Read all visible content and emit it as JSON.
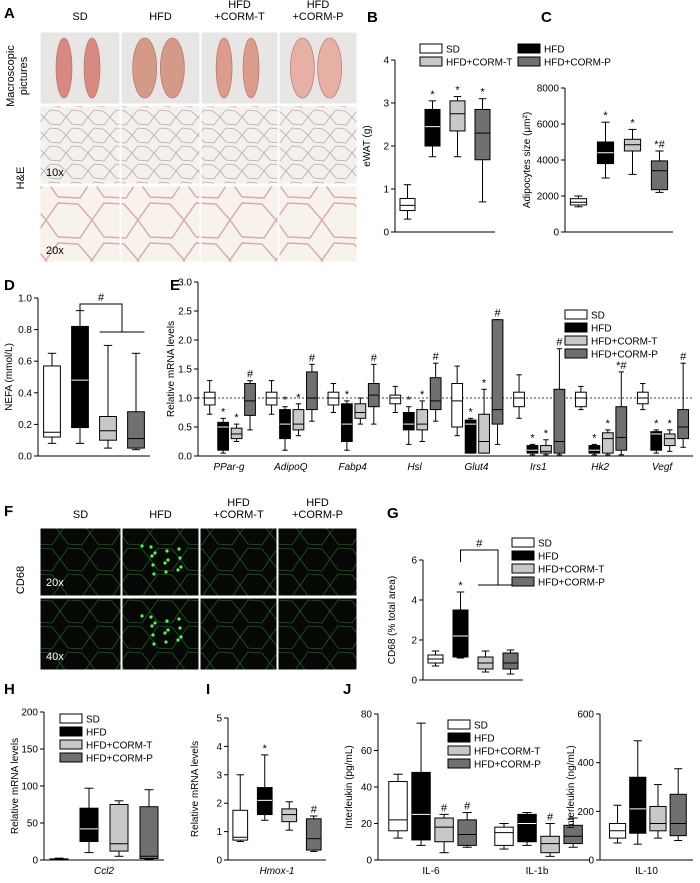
{
  "colors": {
    "SD": "#ffffff",
    "HFD": "#000000",
    "HFD+CORM-T": "#c8c8c8",
    "HFD+CORM-P": "#707070"
  },
  "panelA": {
    "letter": "A",
    "headers": [
      "SD",
      "HFD",
      "HFD\n+CORM-T",
      "HFD\n+CORM-P"
    ],
    "row_labels": [
      "Macroscopic\npictures",
      "H&E"
    ],
    "magnifications": [
      "10x",
      "20x"
    ]
  },
  "panelF": {
    "letter": "F",
    "headers": [
      "SD",
      "HFD",
      "HFD\n+CORM-T",
      "HFD\n+CORM-P"
    ],
    "row_label": "CD68",
    "magnifications": [
      "20x",
      "40x"
    ]
  },
  "chart_data": [
    {
      "id": "B",
      "type": "box",
      "letter": "B",
      "ylabel": "eWAT (g)",
      "ylim": [
        0,
        4
      ],
      "yticks": [
        0,
        1,
        2,
        3,
        4
      ],
      "legend": [
        "SD",
        "HFD",
        "HFD+CORM-T",
        "HFD+CORM-P"
      ],
      "groups": [
        "SD",
        "HFD",
        "HFD+CORM-T",
        "HFD+CORM-P"
      ],
      "boxes": [
        [
          0.3,
          0.5,
          0.62,
          0.78,
          1.1
        ],
        [
          1.75,
          2.0,
          2.45,
          2.85,
          3.05
        ],
        [
          1.75,
          2.35,
          2.75,
          3.05,
          3.15
        ],
        [
          0.7,
          1.68,
          2.3,
          2.85,
          3.1
        ]
      ],
      "marks": [
        "",
        "*",
        "*",
        "*"
      ]
    },
    {
      "id": "C",
      "type": "box",
      "letter": "C",
      "ylabel": "Adipocytes size (μm²)",
      "ylim": [
        0,
        8000
      ],
      "yticks": [
        0,
        2000,
        4000,
        6000,
        8000
      ],
      "groups": [
        "SD",
        "HFD",
        "HFD+CORM-T",
        "HFD+CORM-P"
      ],
      "boxes": [
        [
          1400,
          1500,
          1650,
          1850,
          2000
        ],
        [
          3000,
          3800,
          4400,
          5000,
          6100
        ],
        [
          3200,
          4500,
          4850,
          5150,
          5700
        ],
        [
          2200,
          2350,
          3400,
          3950,
          4500
        ]
      ],
      "marks": [
        "",
        "*",
        "*",
        "*#"
      ]
    },
    {
      "id": "D",
      "type": "box",
      "letter": "D",
      "ylabel": "NEFA (mmol/L)",
      "ylim": [
        0,
        1.0
      ],
      "yticks": [
        0.0,
        0.2,
        0.4,
        0.6,
        0.8,
        1.0
      ],
      "groups": [
        "SD",
        "HFD",
        "HFD+CORM-T",
        "HFD+CORM-P"
      ],
      "boxes": [
        [
          0.08,
          0.12,
          0.15,
          0.57,
          0.65
        ],
        [
          0.08,
          0.18,
          0.48,
          0.82,
          0.92
        ],
        [
          0.05,
          0.1,
          0.16,
          0.25,
          0.7
        ],
        [
          0.04,
          0.05,
          0.11,
          0.28,
          0.65
        ]
      ],
      "marks": [
        "",
        "",
        "",
        ""
      ],
      "bracket": "#"
    },
    {
      "id": "E",
      "type": "box",
      "letter": "E",
      "ylabel": "Relative mRNA levels",
      "ylim": [
        0,
        3.0
      ],
      "yticks": [
        0.0,
        0.5,
        1.0,
        1.5,
        2.0,
        2.5,
        3.0
      ],
      "refline": 1.0,
      "legend": [
        "SD",
        "HFD",
        "HFD+CORM-T",
        "HFD+CORM-P"
      ],
      "categories": [
        "PPar-g",
        "AdipoQ",
        "Fabp4",
        "Hsl",
        "Glut4",
        "Irs1",
        "Hk2",
        "Vegf"
      ],
      "boxes": [
        [
          [
            0.72,
            0.88,
            1.0,
            1.1,
            1.3
          ],
          [
            0.05,
            0.1,
            0.5,
            0.58,
            0.65
          ],
          [
            0.25,
            0.3,
            0.38,
            0.48,
            0.55
          ],
          [
            0.45,
            0.7,
            0.95,
            1.25,
            1.3
          ]
        ],
        [
          [
            0.72,
            0.88,
            1.0,
            1.1,
            1.3
          ],
          [
            0.1,
            0.3,
            0.55,
            0.8,
            0.85
          ],
          [
            0.35,
            0.45,
            0.55,
            0.8,
            0.9
          ],
          [
            0.6,
            0.8,
            1.0,
            1.45,
            1.58
          ]
        ],
        [
          [
            0.75,
            0.88,
            1.0,
            1.1,
            1.25
          ],
          [
            0.1,
            0.25,
            0.55,
            0.9,
            0.95
          ],
          [
            0.55,
            0.65,
            0.75,
            0.9,
            1.0
          ],
          [
            0.55,
            0.85,
            1.05,
            1.25,
            1.58
          ]
        ],
        [
          [
            0.75,
            0.9,
            1.0,
            1.05,
            1.2
          ],
          [
            0.2,
            0.45,
            0.55,
            0.75,
            0.85
          ],
          [
            0.25,
            0.45,
            0.55,
            0.8,
            0.95
          ],
          [
            0.6,
            0.8,
            0.95,
            1.35,
            1.6
          ]
        ],
        [
          [
            0.35,
            0.5,
            0.95,
            1.25,
            1.55
          ],
          [
            0.05,
            0.05,
            0.55,
            0.62,
            0.65
          ],
          [
            0.05,
            0.05,
            0.25,
            0.72,
            1.15
          ],
          [
            0.2,
            0.55,
            0.8,
            2.35,
            2.35
          ]
        ],
        [
          [
            0.65,
            0.85,
            1.0,
            1.1,
            1.4
          ],
          [
            0.02,
            0.05,
            0.1,
            0.18,
            0.2
          ],
          [
            0.02,
            0.05,
            0.08,
            0.18,
            0.28
          ],
          [
            0.02,
            0.05,
            0.25,
            1.15,
            1.85
          ]
        ],
        [
          [
            0.8,
            0.85,
            1.0,
            1.1,
            1.2
          ],
          [
            0.02,
            0.05,
            0.1,
            0.18,
            0.2
          ],
          [
            0.02,
            0.05,
            0.3,
            0.4,
            0.45
          ],
          [
            0.02,
            0.1,
            0.32,
            0.85,
            1.45
          ]
        ],
        [
          [
            0.8,
            0.9,
            1.0,
            1.1,
            1.25
          ],
          [
            0.05,
            0.1,
            0.38,
            0.42,
            0.45
          ],
          [
            0.08,
            0.18,
            0.3,
            0.38,
            0.45
          ],
          [
            0.15,
            0.3,
            0.5,
            0.8,
            1.6
          ]
        ]
      ],
      "marks": [
        [
          "",
          "*",
          "*",
          "#"
        ],
        [
          "",
          "*",
          "*",
          "#"
        ],
        [
          "",
          "*",
          "",
          "#"
        ],
        [
          "",
          "*",
          "*",
          "#"
        ],
        [
          "",
          "*",
          "*",
          "#"
        ],
        [
          "",
          "*",
          "*",
          "#"
        ],
        [
          "",
          "*",
          "*",
          "*#"
        ],
        [
          "",
          "*",
          "*",
          "#"
        ]
      ]
    },
    {
      "id": "G",
      "type": "box",
      "letter": "G",
      "ylabel": "CD68 (% total area)",
      "ylim": [
        0,
        6
      ],
      "yticks": [
        0,
        2,
        4,
        6
      ],
      "legend": [
        "SD",
        "HFD",
        "HFD+CORM-T",
        "HFD+CORM-P"
      ],
      "groups": [
        "SD",
        "HFD",
        "HFD+CORM-T",
        "HFD+CORM-P"
      ],
      "boxes": [
        [
          0.7,
          0.85,
          1.05,
          1.25,
          1.45
        ],
        [
          1.1,
          1.15,
          2.2,
          3.5,
          4.4
        ],
        [
          0.4,
          0.55,
          0.85,
          1.15,
          1.45
        ],
        [
          0.3,
          0.55,
          0.85,
          1.35,
          1.5
        ]
      ],
      "marks": [
        "",
        "*",
        "",
        ""
      ],
      "bracket": "#"
    },
    {
      "id": "H",
      "type": "box",
      "letter": "H",
      "ylabel": "Relative mRNA levels",
      "ylim": [
        0,
        200
      ],
      "yticks": [
        0,
        50,
        100,
        150,
        200
      ],
      "legend": [
        "SD",
        "HFD",
        "HFD+CORM-T",
        "HFD+CORM-P"
      ],
      "xlabel": "Ccl2",
      "groups": [
        "SD",
        "HFD",
        "HFD+CORM-T",
        "HFD+CORM-P"
      ],
      "boxes": [
        [
          0.5,
          0.8,
          1.0,
          1.5,
          2.5
        ],
        [
          10,
          25,
          42,
          70,
          97
        ],
        [
          5,
          12,
          22,
          75,
          80
        ],
        [
          1,
          2,
          5,
          72,
          95
        ]
      ],
      "marks": [
        "",
        "",
        "",
        ""
      ]
    },
    {
      "id": "I",
      "type": "box",
      "letter": "I",
      "ylabel": "Relative mRNA levels",
      "ylim": [
        0,
        5
      ],
      "yticks": [
        0,
        1,
        2,
        3,
        4,
        5
      ],
      "xlabel": "Hmox-1",
      "groups": [
        "SD",
        "HFD",
        "HFD+CORM-T",
        "HFD+CORM-P"
      ],
      "boxes": [
        [
          0.65,
          0.7,
          0.8,
          1.75,
          3.0
        ],
        [
          1.4,
          1.6,
          2.1,
          2.55,
          3.7
        ],
        [
          1.05,
          1.35,
          1.6,
          1.8,
          2.05
        ],
        [
          0.3,
          0.35,
          0.75,
          1.45,
          1.55
        ]
      ],
      "marks": [
        "",
        "*",
        "",
        "#"
      ]
    },
    {
      "id": "J1",
      "type": "box",
      "letter": "J",
      "ylabel": "Interleukin (pg/mL)",
      "ylim": [
        0,
        80
      ],
      "yticks": [
        0,
        20,
        40,
        60,
        80
      ],
      "legend": [
        "SD",
        "HFD",
        "HFD+CORM-T",
        "HFD+CORM-P"
      ],
      "categories": [
        "IL-6",
        "IL-1b"
      ],
      "boxes": [
        [
          [
            12,
            16,
            22,
            43,
            47
          ],
          [
            8,
            11,
            25,
            48,
            75
          ],
          [
            4,
            10,
            18,
            23,
            25
          ],
          [
            7,
            8,
            14,
            22,
            26
          ]
        ],
        [
          [
            6,
            8,
            15,
            18,
            20
          ],
          [
            8,
            10,
            20,
            25,
            26
          ],
          [
            2,
            4,
            9,
            13,
            20
          ],
          [
            7,
            9,
            13,
            19,
            23
          ]
        ]
      ],
      "marks": [
        [
          "",
          "",
          "#",
          "#"
        ],
        [
          "",
          "",
          "#",
          ""
        ]
      ]
    },
    {
      "id": "J2",
      "type": "box",
      "ylabel": "Interleukin (ng/mL)",
      "ylim": [
        0,
        600
      ],
      "yticks": [
        0,
        200,
        400,
        600
      ],
      "categories": [
        "IL-10"
      ],
      "boxes": [
        [
          [
            70,
            90,
            120,
            150,
            225
          ],
          [
            65,
            110,
            210,
            340,
            490
          ],
          [
            90,
            120,
            150,
            220,
            310
          ],
          [
            80,
            100,
            150,
            270,
            375
          ]
        ]
      ],
      "marks": [
        [
          "",
          "",
          "",
          ""
        ]
      ]
    }
  ]
}
